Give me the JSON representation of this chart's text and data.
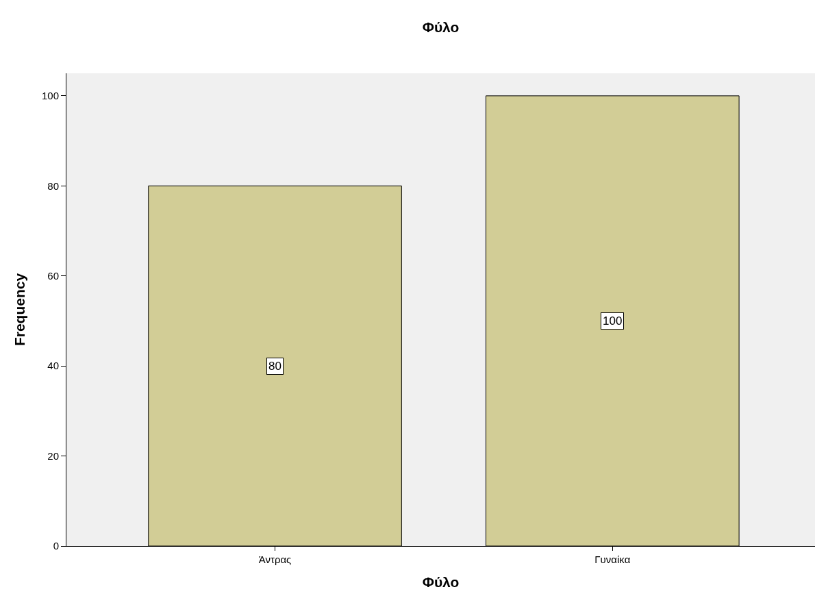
{
  "chart_data": {
    "type": "bar",
    "title": "Φύλο",
    "xlabel": "Φύλο",
    "ylabel": "Frequency",
    "categories": [
      "Άντρας",
      "Γυναίκα"
    ],
    "values": [
      80,
      100
    ],
    "color": "#d2cd96",
    "ylim": [
      0,
      105
    ],
    "yticks": [
      0,
      20,
      40,
      60,
      80,
      100
    ],
    "grid": false,
    "data_labels": true
  }
}
